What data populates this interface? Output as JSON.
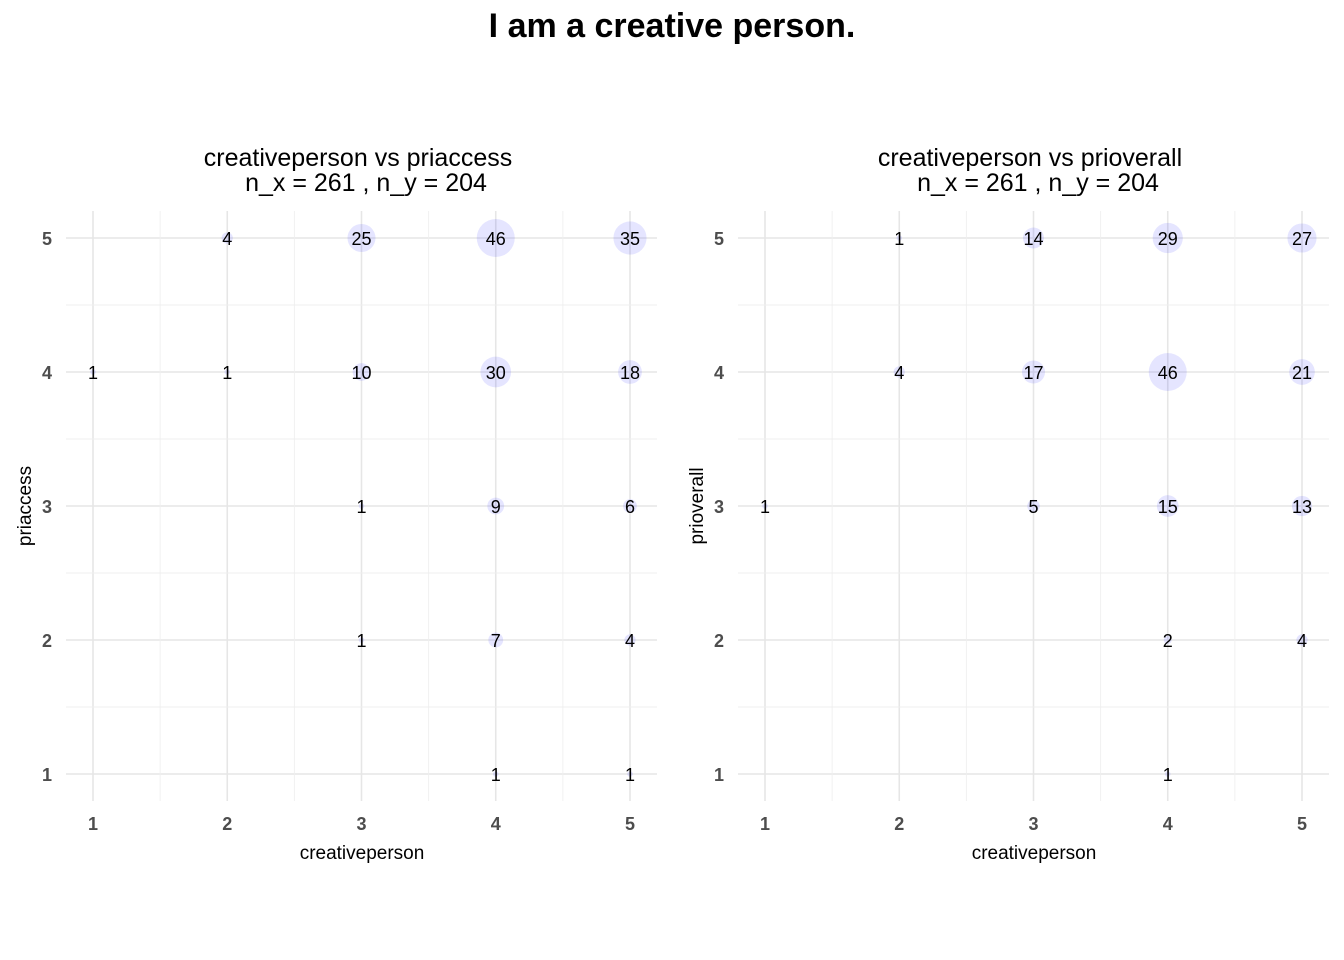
{
  "title": "I am a creative person.",
  "colors": {
    "bubble": "#0000ff",
    "grid": "#e6e6e6",
    "tick_text": "#4d4d4d"
  },
  "chart_data": [
    {
      "type": "scatter",
      "title": "creativeperson vs priaccess",
      "subtitle": "n_x = 261 , n_y = 204",
      "xlabel": "creativeperson",
      "ylabel": "priaccess",
      "xlim": [
        0.8,
        5.2
      ],
      "ylim": [
        0.8,
        5.2
      ],
      "x_ticks": [
        "1",
        "2",
        "3",
        "4",
        "5"
      ],
      "y_ticks": [
        "1",
        "2",
        "3",
        "4",
        "5"
      ],
      "grid": true,
      "points": [
        {
          "x": 2,
          "y": 5,
          "count": 4
        },
        {
          "x": 3,
          "y": 5,
          "count": 25
        },
        {
          "x": 4,
          "y": 5,
          "count": 46
        },
        {
          "x": 5,
          "y": 5,
          "count": 35
        },
        {
          "x": 1,
          "y": 4,
          "count": 1
        },
        {
          "x": 2,
          "y": 4,
          "count": 1
        },
        {
          "x": 3,
          "y": 4,
          "count": 10
        },
        {
          "x": 4,
          "y": 4,
          "count": 30
        },
        {
          "x": 5,
          "y": 4,
          "count": 18
        },
        {
          "x": 3,
          "y": 3,
          "count": 1
        },
        {
          "x": 4,
          "y": 3,
          "count": 9
        },
        {
          "x": 5,
          "y": 3,
          "count": 6
        },
        {
          "x": 3,
          "y": 2,
          "count": 1
        },
        {
          "x": 4,
          "y": 2,
          "count": 7
        },
        {
          "x": 5,
          "y": 2,
          "count": 4
        },
        {
          "x": 4,
          "y": 1,
          "count": 1
        },
        {
          "x": 5,
          "y": 1,
          "count": 1
        }
      ]
    },
    {
      "type": "scatter",
      "title": "creativeperson vs prioverall",
      "subtitle": "n_x = 261 , n_y = 204",
      "xlabel": "creativeperson",
      "ylabel": "prioverall",
      "xlim": [
        0.8,
        5.2
      ],
      "ylim": [
        0.8,
        5.2
      ],
      "x_ticks": [
        "1",
        "2",
        "3",
        "4",
        "5"
      ],
      "y_ticks": [
        "1",
        "2",
        "3",
        "4",
        "5"
      ],
      "grid": true,
      "points": [
        {
          "x": 2,
          "y": 5,
          "count": 1
        },
        {
          "x": 3,
          "y": 5,
          "count": 14
        },
        {
          "x": 4,
          "y": 5,
          "count": 29
        },
        {
          "x": 5,
          "y": 5,
          "count": 27
        },
        {
          "x": 2,
          "y": 4,
          "count": 4
        },
        {
          "x": 3,
          "y": 4,
          "count": 17
        },
        {
          "x": 4,
          "y": 4,
          "count": 46
        },
        {
          "x": 5,
          "y": 4,
          "count": 21
        },
        {
          "x": 1,
          "y": 3,
          "count": 1
        },
        {
          "x": 3,
          "y": 3,
          "count": 5
        },
        {
          "x": 4,
          "y": 3,
          "count": 15
        },
        {
          "x": 5,
          "y": 3,
          "count": 13
        },
        {
          "x": 4,
          "y": 2,
          "count": 2
        },
        {
          "x": 5,
          "y": 2,
          "count": 4
        },
        {
          "x": 4,
          "y": 1,
          "count": 1
        }
      ]
    }
  ]
}
